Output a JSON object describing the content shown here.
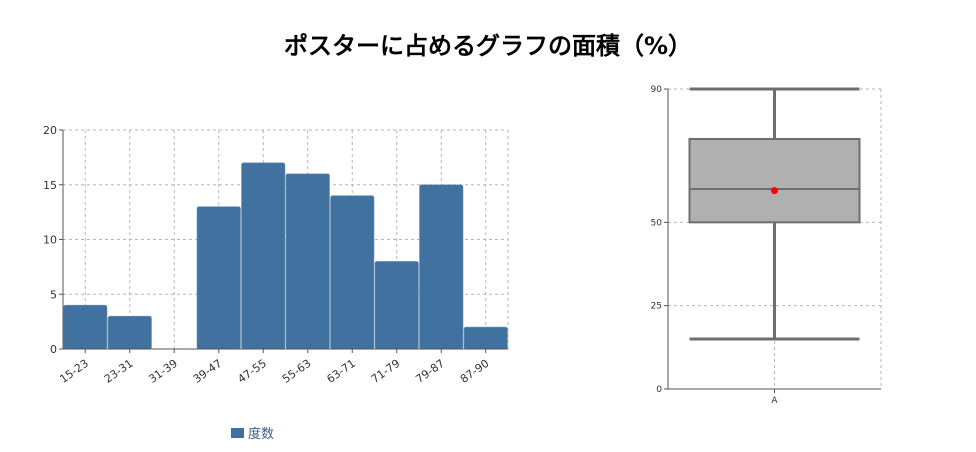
{
  "title": "ポスターに占めるグラフの面積（%）",
  "colors": {
    "bar": "#41729f",
    "box_fill": "#b0b0b0",
    "box_stroke": "#6e6e6e",
    "mean": "#ff0000",
    "grid": "#b5b5b5",
    "axis": "#555555",
    "legend_text": "#3d5f86"
  },
  "legend": {
    "label": "度数"
  },
  "chart_data": [
    {
      "type": "bar",
      "categories": [
        "15-23",
        "23-31",
        "31-39",
        "39-47",
        "47-55",
        "55-63",
        "63-71",
        "71-79",
        "79-87",
        "87-90"
      ],
      "series": [
        {
          "name": "度数",
          "values": [
            4,
            3,
            0,
            13,
            17,
            16,
            14,
            8,
            15,
            2
          ]
        }
      ],
      "yticks": [
        0,
        5,
        10,
        15,
        20
      ],
      "ylim": [
        0,
        20
      ],
      "grid": true,
      "legend_position": "bottom-left"
    },
    {
      "type": "box",
      "categories": [
        "A"
      ],
      "box": {
        "whisker_low": 15,
        "q1": 50,
        "median": 60,
        "q3": 75,
        "whisker_high": 90,
        "mean": 59.5
      },
      "yticks": [
        0,
        25,
        50,
        90
      ],
      "ylim": [
        0,
        90
      ],
      "grid": true
    }
  ]
}
